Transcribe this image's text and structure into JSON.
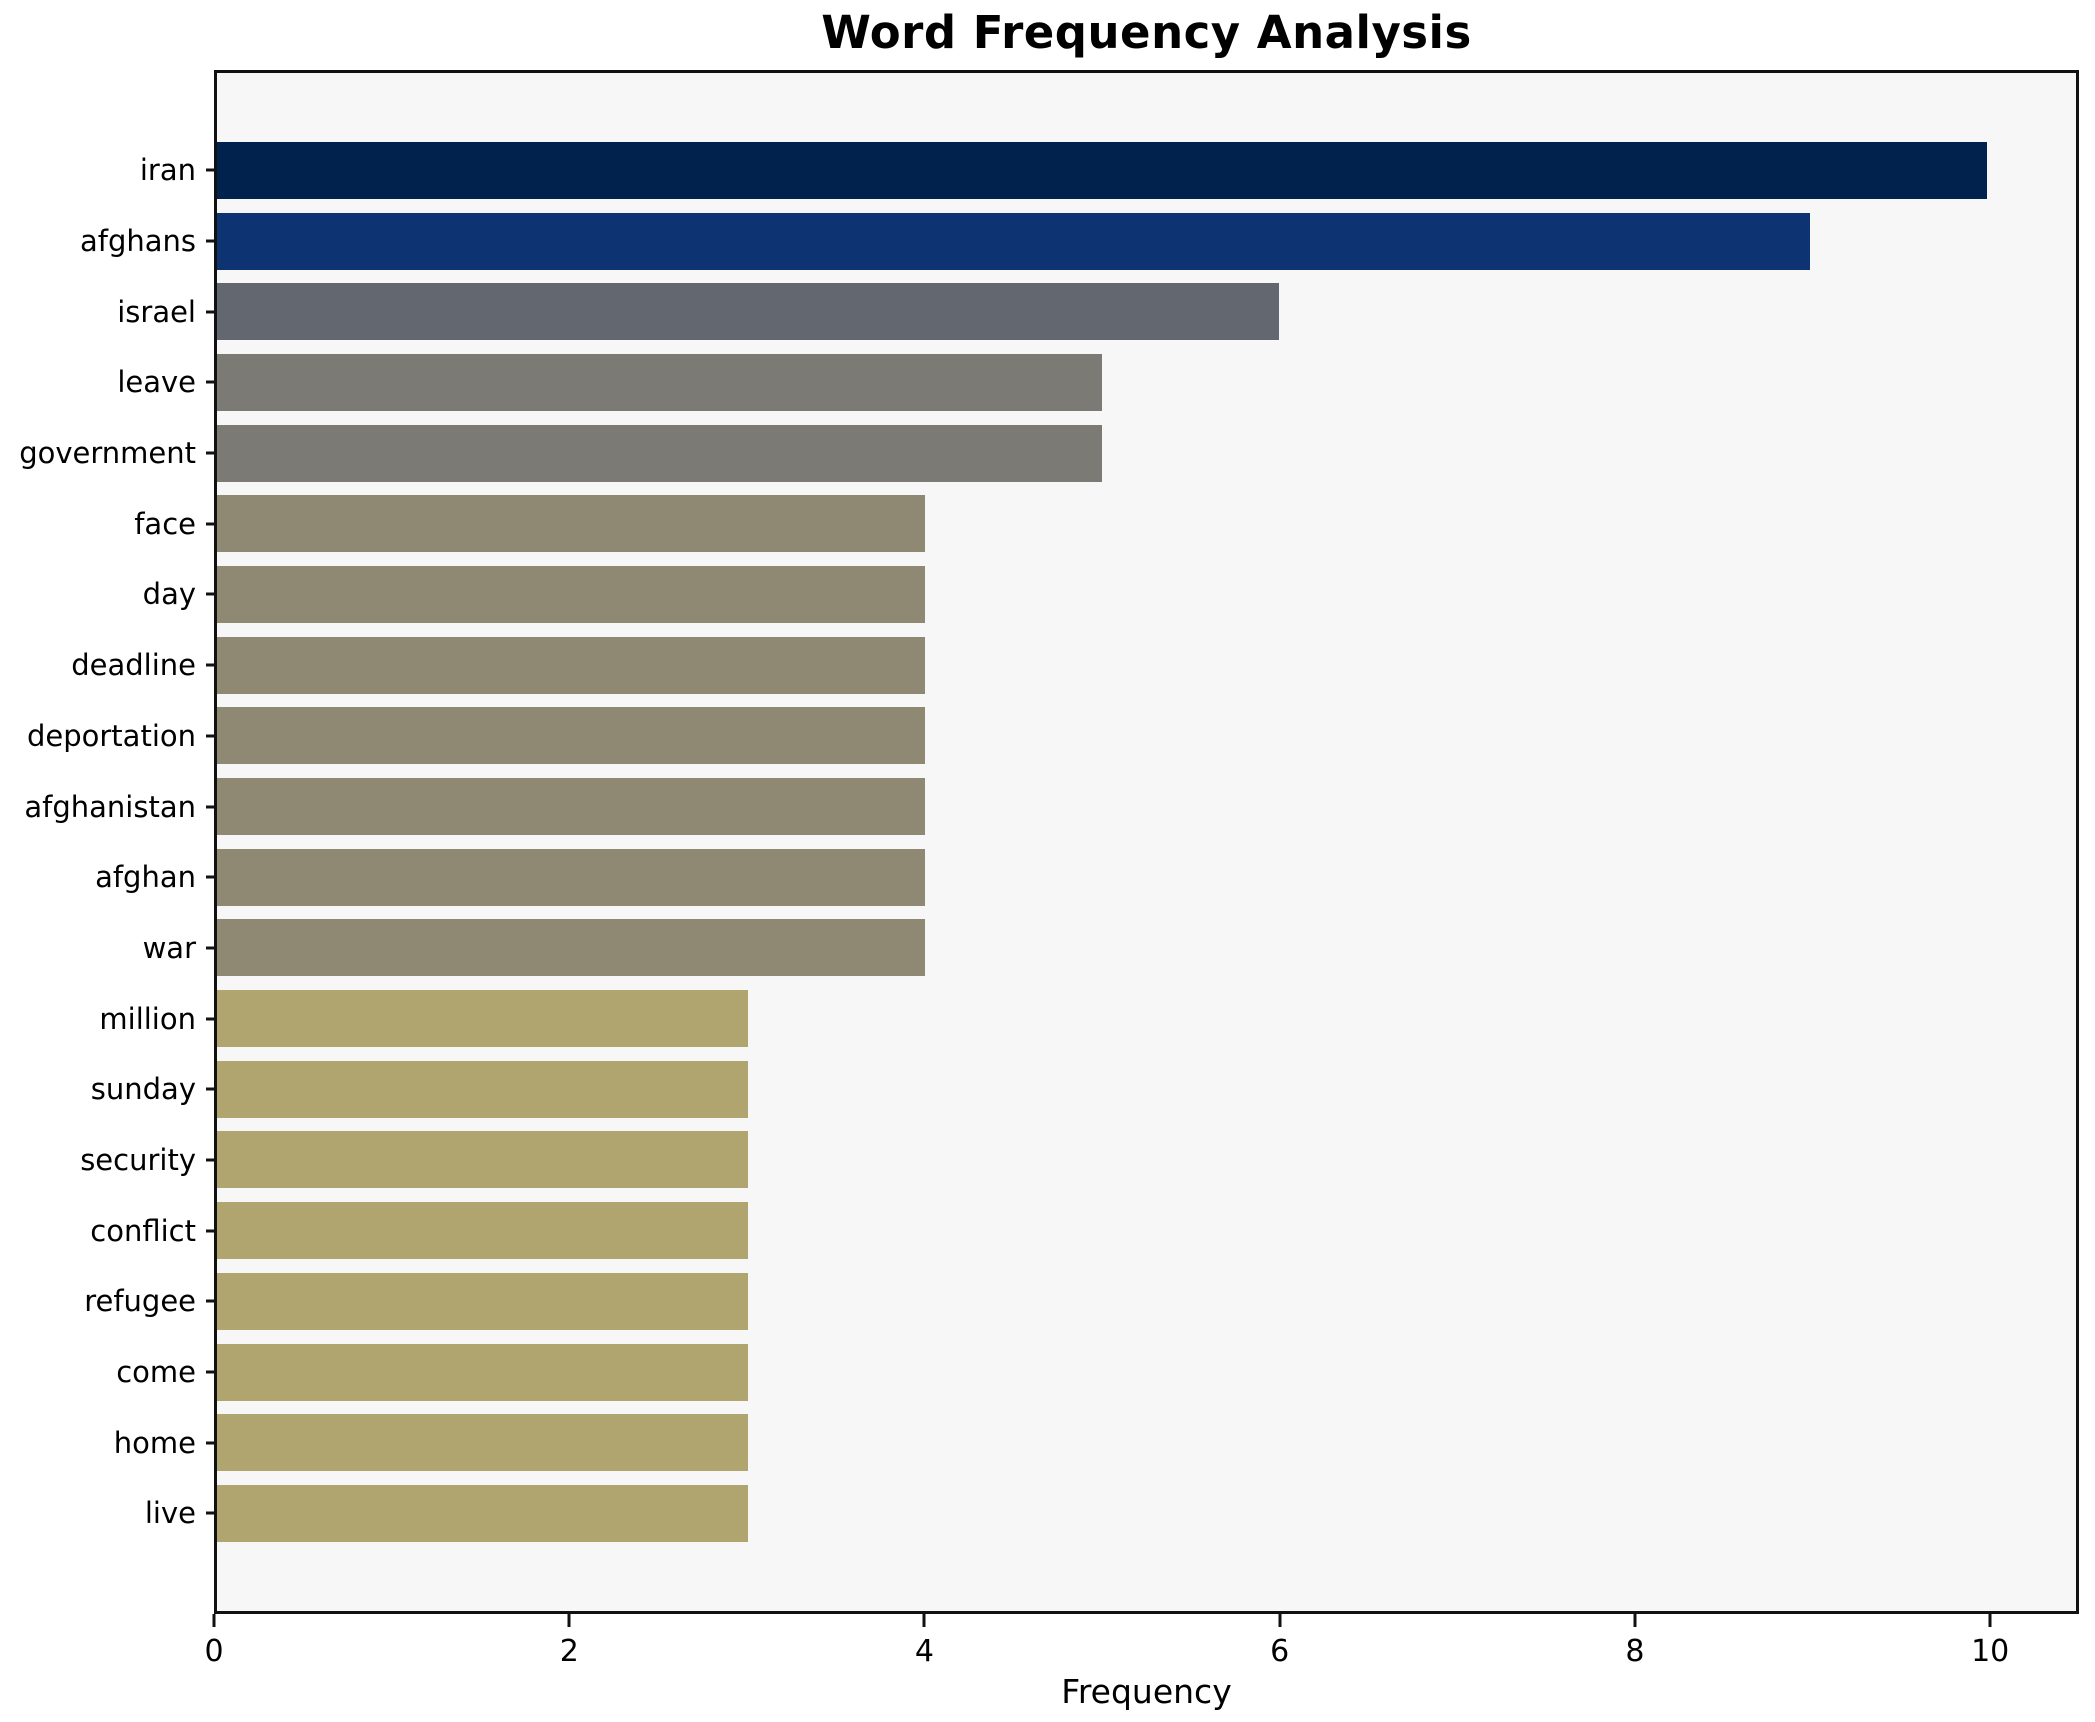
{
  "chart_data": {
    "type": "bar",
    "orientation": "horizontal",
    "title": "Word Frequency Analysis",
    "xlabel": "Frequency",
    "ylabel": "",
    "xlim": [
      0,
      10.5
    ],
    "xticks": [
      0,
      2,
      4,
      6,
      8,
      10
    ],
    "grid": false,
    "legend": false,
    "plot_background": "#f7f7f7",
    "figure_background": "#ffffff",
    "spine_color": "#111111",
    "bar_height_fraction": 0.8,
    "categories": [
      "iran",
      "afghans",
      "israel",
      "leave",
      "government",
      "face",
      "day",
      "deadline",
      "deportation",
      "afghanistan",
      "afghan",
      "war",
      "million",
      "sunday",
      "security",
      "conflict",
      "refugee",
      "come",
      "home",
      "live"
    ],
    "values": [
      10,
      9,
      6,
      5,
      5,
      4,
      4,
      4,
      4,
      4,
      4,
      4,
      3,
      3,
      3,
      3,
      3,
      3,
      3,
      3
    ],
    "bars": [
      {
        "label": "iran",
        "value": 10,
        "color": "#02224e"
      },
      {
        "label": "afghans",
        "value": 9,
        "color": "#0e3372"
      },
      {
        "label": "israel",
        "value": 6,
        "color": "#63676f"
      },
      {
        "label": "leave",
        "value": 5,
        "color": "#7b7a74"
      },
      {
        "label": "government",
        "value": 5,
        "color": "#7b7a74"
      },
      {
        "label": "face",
        "value": 4,
        "color": "#8f8973"
      },
      {
        "label": "day",
        "value": 4,
        "color": "#8f8973"
      },
      {
        "label": "deadline",
        "value": 4,
        "color": "#8f8973"
      },
      {
        "label": "deportation",
        "value": 4,
        "color": "#8f8973"
      },
      {
        "label": "afghanistan",
        "value": 4,
        "color": "#8f8973"
      },
      {
        "label": "afghan",
        "value": 4,
        "color": "#8f8973"
      },
      {
        "label": "war",
        "value": 4,
        "color": "#8f8973"
      },
      {
        "label": "million",
        "value": 3,
        "color": "#b0a56f"
      },
      {
        "label": "sunday",
        "value": 3,
        "color": "#b0a56f"
      },
      {
        "label": "security",
        "value": 3,
        "color": "#b0a56f"
      },
      {
        "label": "conflict",
        "value": 3,
        "color": "#b0a56f"
      },
      {
        "label": "refugee",
        "value": 3,
        "color": "#b0a56f"
      },
      {
        "label": "come",
        "value": 3,
        "color": "#b0a56f"
      },
      {
        "label": "home",
        "value": 3,
        "color": "#b0a56f"
      },
      {
        "label": "live",
        "value": 3,
        "color": "#b0a56f"
      }
    ]
  }
}
